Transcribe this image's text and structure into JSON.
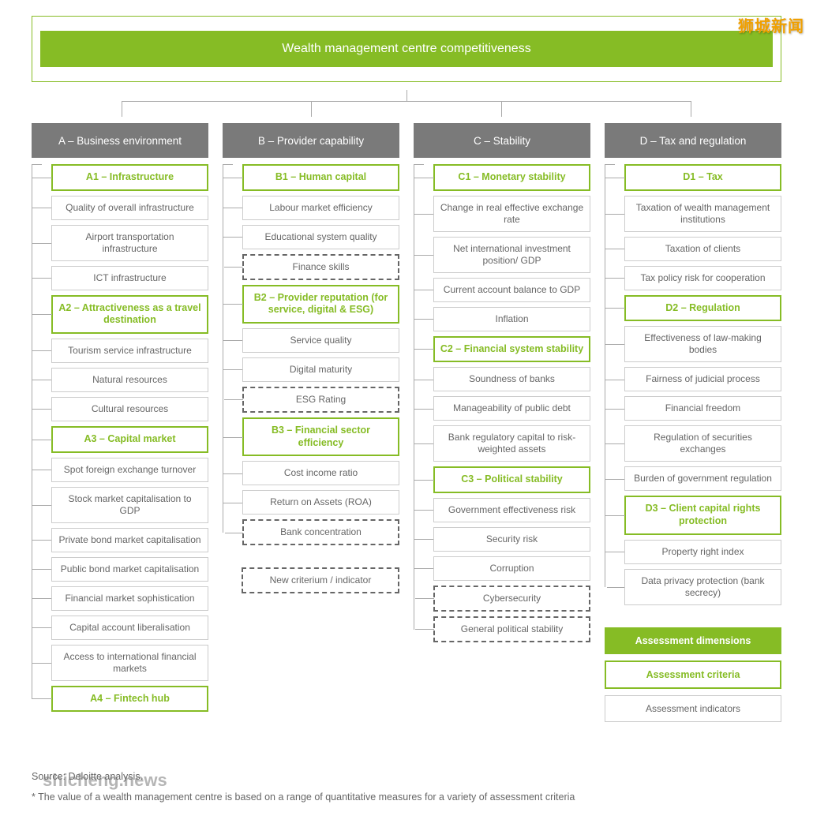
{
  "title": "Wealth  management centre competitiveness",
  "watermark_top": "狮城新闻",
  "watermark_bottom": "shicheng.news",
  "colors": {
    "accent": "#86bc25",
    "dimension_bg": "#7a7a7a",
    "text": "#666666",
    "border_light": "#cccccc",
    "line": "#aaaaaa"
  },
  "columns": [
    {
      "head": "A – Business environment",
      "groups": [
        {
          "criteria": "A1 – Infrastructure",
          "items": [
            {
              "label": "Quality of overall infrastructure"
            },
            {
              "label": "Airport transportation infrastructure"
            },
            {
              "label": "ICT infrastructure"
            }
          ]
        },
        {
          "criteria": "A2 – Attractiveness as a travel destination",
          "items": [
            {
              "label": "Tourism service infrastructure"
            },
            {
              "label": "Natural resources"
            },
            {
              "label": "Cultural resources"
            }
          ]
        },
        {
          "criteria": "A3 – Capital market",
          "items": [
            {
              "label": "Spot foreign exchange turnover"
            },
            {
              "label": "Stock market capitalisation to GDP"
            },
            {
              "label": "Private bond market capitalisation"
            },
            {
              "label": "Public bond market capitalisation"
            },
            {
              "label": "Financial market sophistication"
            },
            {
              "label": "Capital account liberalisation"
            },
            {
              "label": "Access to international financial markets"
            }
          ]
        },
        {
          "criteria": "A4 – Fintech hub",
          "items": []
        }
      ]
    },
    {
      "head": "B – Provider capability",
      "groups": [
        {
          "criteria": "B1 – Human capital",
          "items": [
            {
              "label": "Labour market efficiency"
            },
            {
              "label": "Educational system quality"
            },
            {
              "label": "Finance skills",
              "dashed": true
            }
          ]
        },
        {
          "criteria": "B2 – Provider reputation (for service, digital & ESG)",
          "items": [
            {
              "label": "Service quality"
            },
            {
              "label": "Digital maturity"
            },
            {
              "label": "ESG Rating",
              "dashed": true
            }
          ]
        },
        {
          "criteria": "B3 – Financial sector efficiency",
          "items": [
            {
              "label": "Cost income ratio"
            },
            {
              "label": "Return on Assets (ROA)"
            },
            {
              "label": "Bank concentration",
              "dashed": true
            }
          ]
        }
      ],
      "extra": {
        "label": "New criterium / indicator",
        "dashed": true
      }
    },
    {
      "head": "C – Stability",
      "groups": [
        {
          "criteria": "C1 – Monetary stability",
          "items": [
            {
              "label": "Change in real effective exchange rate"
            },
            {
              "label": "Net international investment position/ GDP"
            },
            {
              "label": "Current account balance to GDP"
            },
            {
              "label": "Inflation"
            }
          ]
        },
        {
          "criteria": "C2 – Financial system stability",
          "items": [
            {
              "label": "Soundness of banks"
            },
            {
              "label": "Manageability of public debt"
            },
            {
              "label": "Bank regulatory capital to risk-weighted assets"
            }
          ]
        },
        {
          "criteria": "C3 – Political stability",
          "items": [
            {
              "label": "Government effectiveness risk"
            },
            {
              "label": "Security risk"
            },
            {
              "label": "Corruption"
            },
            {
              "label": "Cybersecurity",
              "dashed": true
            },
            {
              "label": "General political stability",
              "dashed": true
            }
          ]
        }
      ]
    },
    {
      "head": "D – Tax and regulation",
      "groups": [
        {
          "criteria": "D1 – Tax",
          "items": [
            {
              "label": "Taxation of wealth management institutions"
            },
            {
              "label": "Taxation of clients"
            },
            {
              "label": "Tax policy risk for cooperation"
            }
          ]
        },
        {
          "criteria": "D2 – Regulation",
          "items": [
            {
              "label": "Effectiveness of law-making bodies"
            },
            {
              "label": "Fairness of judicial process"
            },
            {
              "label": "Financial freedom"
            },
            {
              "label": "Regulation of securities exchanges"
            },
            {
              "label": "Burden of government regulation"
            }
          ]
        },
        {
          "criteria": "D3 – Client capital rights protection",
          "items": [
            {
              "label": "Property right index"
            },
            {
              "label": "Data privacy protection (bank secrecy)"
            }
          ]
        }
      ],
      "legend": {
        "dim": "Assessment dimensions",
        "crit": "Assessment criteria",
        "ind": "Assessment indicators"
      }
    }
  ],
  "footer": {
    "source": "Source: Deloitte analysis.",
    "note": "* The value of a wealth management centre is based on a range of quantitative measures for a variety of assessment criteria"
  }
}
